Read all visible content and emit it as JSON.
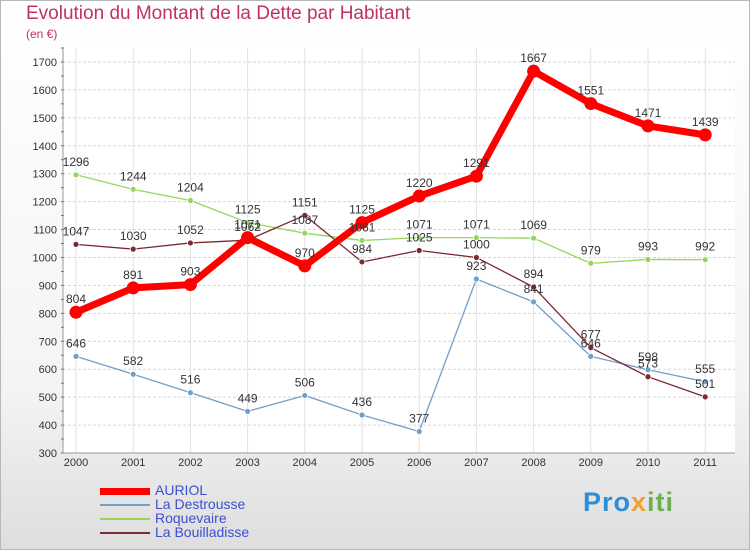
{
  "title": "Evolution du Montant de la Dette par Habitant",
  "subtitle": "(en €)",
  "logo": {
    "text": "Proxiti",
    "parts": [
      "Pro",
      "x",
      "iti"
    ]
  },
  "chart_data": {
    "type": "line",
    "x": [
      "2000",
      "2001",
      "2002",
      "2003",
      "2004",
      "2005",
      "2006",
      "2007",
      "2008",
      "2009",
      "2010",
      "2011"
    ],
    "yticks": [
      300,
      400,
      500,
      600,
      700,
      800,
      900,
      1000,
      1100,
      1200,
      1300,
      1400,
      1500,
      1600,
      1700
    ],
    "ylim": [
      300,
      1750
    ],
    "grid": true,
    "legend_position": "bottom-left",
    "series": [
      {
        "name": "La Destrousse",
        "color": "#6fa0cc",
        "values": [
          646,
          582,
          516,
          449,
          506,
          436,
          377,
          923,
          841,
          646,
          598,
          555
        ]
      },
      {
        "name": "Roquevaire",
        "color": "#93d65c",
        "values": [
          1296,
          1244,
          1204,
          1125,
          1087,
          1061,
          1071,
          1071,
          1069,
          979,
          993,
          992
        ]
      },
      {
        "name": "La Bouilladisse",
        "color": "#7a2a32",
        "values": [
          1047,
          1030,
          1052,
          1062,
          1151,
          984,
          1025,
          1000,
          894,
          677,
          573,
          501
        ]
      },
      {
        "name": "AURIOL",
        "color": "#ff0000",
        "values": [
          804,
          891,
          903,
          1071,
          970,
          1125,
          1220,
          1291,
          1667,
          1551,
          1471,
          1439
        ]
      }
    ],
    "legend": [
      "AURIOL",
      "La Destrousse",
      "Roquevaire",
      "La Bouilladisse"
    ]
  }
}
